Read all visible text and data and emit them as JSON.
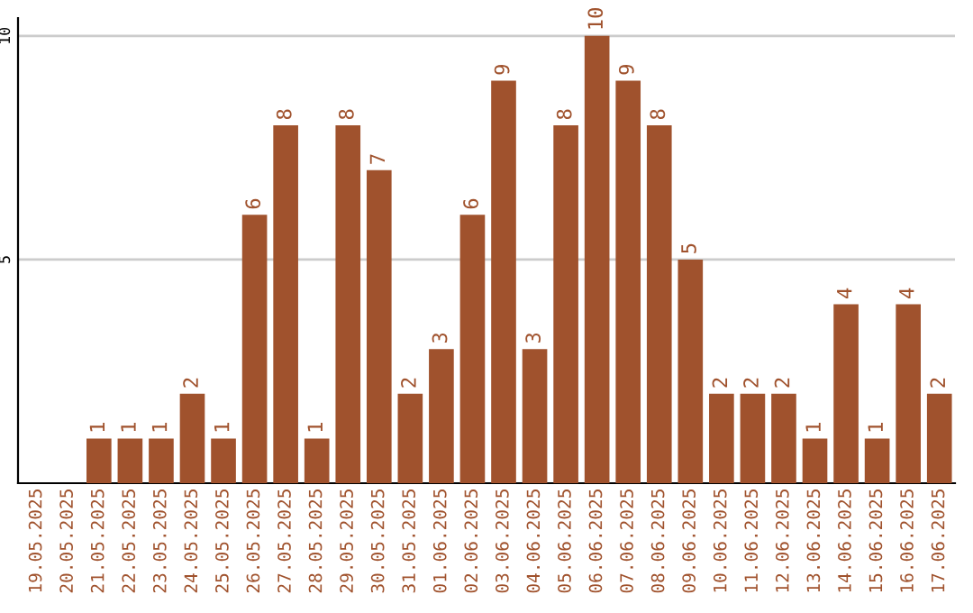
{
  "chart_data": {
    "type": "bar",
    "categories": [
      "19.05.2025",
      "20.05.2025",
      "21.05.2025",
      "22.05.2025",
      "23.05.2025",
      "24.05.2025",
      "25.05.2025",
      "26.05.2025",
      "27.05.2025",
      "28.05.2025",
      "29.05.2025",
      "30.05.2025",
      "31.05.2025",
      "01.06.2025",
      "02.06.2025",
      "03.06.2025",
      "04.06.2025",
      "05.06.2025",
      "06.06.2025",
      "07.06.2025",
      "08.06.2025",
      "09.06.2025",
      "10.06.2025",
      "11.06.2025",
      "12.06.2025",
      "13.06.2025",
      "14.06.2025",
      "15.06.2025",
      "16.06.2025",
      "17.06.2025"
    ],
    "values": [
      0,
      0,
      1,
      1,
      1,
      2,
      1,
      6,
      8,
      1,
      8,
      7,
      2,
      3,
      6,
      9,
      3,
      8,
      10,
      9,
      8,
      5,
      2,
      2,
      2,
      1,
      4,
      1,
      4,
      2
    ],
    "value_labels": [
      null,
      null,
      "1",
      "1",
      "1",
      "2",
      "1",
      "6",
      "8",
      "1",
      "8",
      "7",
      "2",
      "3",
      "6",
      "9",
      "3",
      "8",
      "10",
      "9",
      "8",
      "5",
      "2",
      "2",
      "2",
      "1",
      "4",
      "1",
      "4",
      "2"
    ],
    "color": "#a0522d",
    "ylim": [
      0,
      10.4
    ],
    "yticks": [
      5,
      10
    ],
    "grid": "y",
    "legend": false
  }
}
